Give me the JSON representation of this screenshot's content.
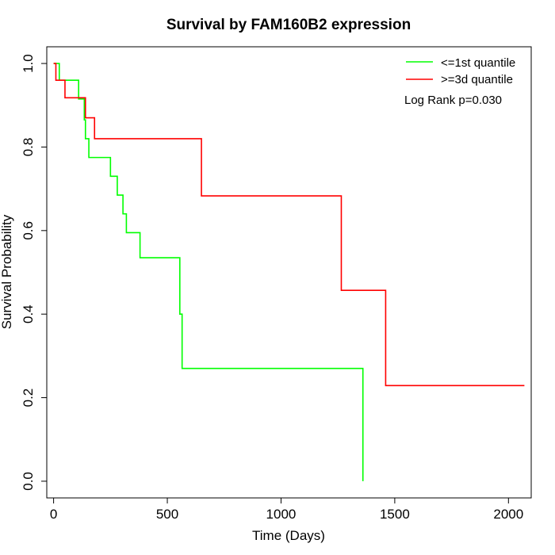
{
  "chart_data": {
    "type": "line",
    "title": "Survival by FAM160B2 expression",
    "xlabel": "Time (Days)",
    "ylabel": "Survival Probability",
    "xlim": [
      -30,
      2100
    ],
    "ylim": [
      -0.04,
      1.04
    ],
    "x_ticks": [
      0,
      500,
      1000,
      1500,
      2000
    ],
    "x_tick_labels": [
      "0",
      "500",
      "1000",
      "1500",
      "2000"
    ],
    "y_ticks": [
      0.0,
      0.2,
      0.4,
      0.6,
      0.8,
      1.0
    ],
    "y_tick_labels": [
      "0.0",
      "0.2",
      "0.4",
      "0.6",
      "0.8",
      "1.0"
    ],
    "grid": false,
    "legend_position": "top-right",
    "annotation": "Log Rank p=0.030",
    "series": [
      {
        "name": "<=1st quantile",
        "color": "#00ff00",
        "step": true,
        "points": [
          [
            0,
            1.0
          ],
          [
            25,
            0.96
          ],
          [
            110,
            0.915
          ],
          [
            135,
            0.865
          ],
          [
            140,
            0.82
          ],
          [
            155,
            0.775
          ],
          [
            250,
            0.73
          ],
          [
            280,
            0.685
          ],
          [
            305,
            0.64
          ],
          [
            320,
            0.595
          ],
          [
            380,
            0.535
          ],
          [
            555,
            0.4
          ],
          [
            565,
            0.27
          ],
          [
            1360,
            0.0
          ]
        ]
      },
      {
        "name": ">=3d quantile",
        "color": "#ff0000",
        "step": true,
        "points": [
          [
            0,
            1.0
          ],
          [
            10,
            0.96
          ],
          [
            50,
            0.918
          ],
          [
            140,
            0.87
          ],
          [
            180,
            0.82
          ],
          [
            650,
            0.683
          ],
          [
            1265,
            0.457
          ],
          [
            1460,
            0.229
          ],
          [
            2070,
            0.229
          ]
        ]
      }
    ]
  }
}
